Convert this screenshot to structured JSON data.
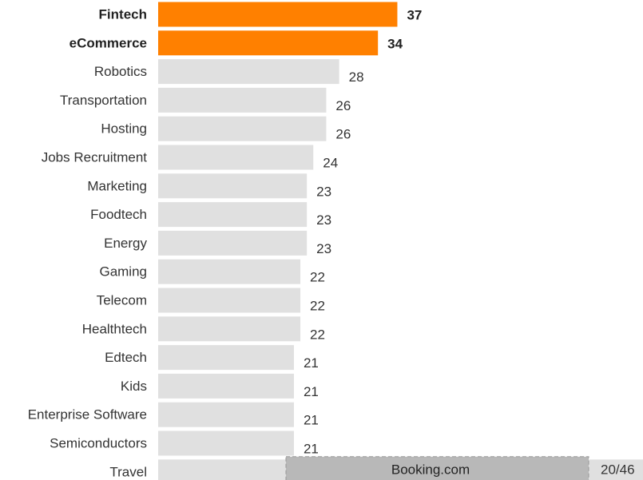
{
  "chart_data": {
    "type": "bar",
    "orientation": "horizontal",
    "categories": [
      "Fintech",
      "eCommerce",
      "Robotics",
      "Transportation",
      "Hosting",
      "Jobs Recruitment",
      "Marketing",
      "Foodtech",
      "Energy",
      "Gaming",
      "Telecom",
      "Healthtech",
      "Edtech",
      "Kids",
      "Enterprise Software",
      "Semiconductors",
      "Travel"
    ],
    "values": [
      37,
      34,
      28,
      26,
      26,
      24,
      23,
      23,
      23,
      22,
      22,
      22,
      21,
      21,
      21,
      21,
      75
    ],
    "colors": [
      "#ff8000",
      "#ff8000",
      "#e0e0e0",
      "#e0e0e0",
      "#e0e0e0",
      "#e0e0e0",
      "#e0e0e0",
      "#e0e0e0",
      "#e0e0e0",
      "#e0e0e0",
      "#e0e0e0",
      "#e0e0e0",
      "#e0e0e0",
      "#e0e0e0",
      "#e0e0e0",
      "#e0e0e0",
      "#e0e0e0"
    ],
    "highlight_color": "#ff8000",
    "xlim": [
      0,
      75
    ],
    "annotation": {
      "text": "Booking.com",
      "label": "20/46"
    }
  }
}
